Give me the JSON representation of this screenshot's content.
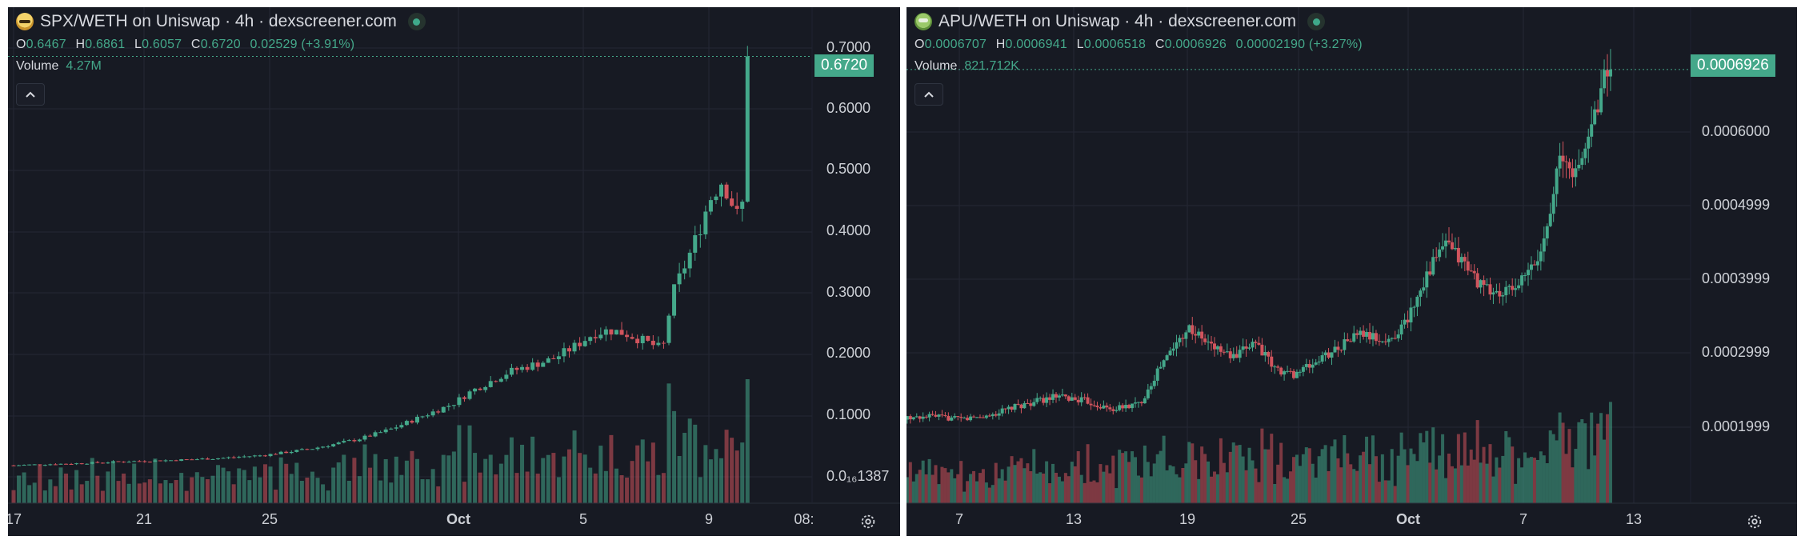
{
  "colors": {
    "up": "#44a88a",
    "down": "#d1545d",
    "background": "#171a23",
    "grid": "#242835"
  },
  "left": {
    "pair": "SPX/WETH",
    "title": "SPX/WETH on Uniswap · 4h · dexscreener.com",
    "logo": "spx-token-logo",
    "ohlc": {
      "o_label": "O",
      "o": "0.6467",
      "h_label": "H",
      "h": "0.6861",
      "l_label": "L",
      "l": "0.6057",
      "c_label": "C",
      "c": "0.6720",
      "change": "0.02529 (+3.91%)"
    },
    "volume": {
      "label": "Volume",
      "value": "4.27M"
    },
    "last_price": "0.6720",
    "y_ticks": [
      "0.7000",
      "0.6000",
      "0.5000",
      "0.4000",
      "0.3000",
      "0.2000",
      "0.1000",
      "0.0₁₆1387"
    ],
    "x_ticks": [
      "17",
      "21",
      "25",
      "Oct",
      "5",
      "9",
      "08:"
    ]
  },
  "right": {
    "pair": "APU/WETH",
    "title": "APU/WETH on Uniswap · 4h · dexscreener.com",
    "logo": "apu-token-logo",
    "ohlc": {
      "o_label": "O",
      "o": "0.0006707",
      "h_label": "H",
      "h": "0.0006941",
      "l_label": "L",
      "l": "0.0006518",
      "c_label": "C",
      "c": "0.0006926",
      "change": "0.00002190 (+3.27%)"
    },
    "volume": {
      "label": "Volume",
      "value": "821.712K"
    },
    "last_price": "0.0006926",
    "y_ticks": [
      "0.0006000",
      "0.0004999",
      "0.0003999",
      "0.0002999",
      "0.0001999"
    ],
    "x_ticks": [
      "7",
      "13",
      "19",
      "25",
      "Oct",
      "7",
      "13"
    ]
  },
  "chart_data": [
    {
      "type": "candlestick",
      "title": "SPX/WETH on Uniswap · 4h · dexscreener.com",
      "ylim": [
        0,
        0.7
      ],
      "x_ticks": [
        "17",
        "21",
        "25",
        "Oct",
        "5",
        "9",
        "08:"
      ],
      "y_ticks": [
        "0.7000",
        "0.6000",
        "0.5000",
        "0.4000",
        "0.3000",
        "0.2000",
        "0.1000",
        "0.0₁₆1387"
      ],
      "trend_close": [
        0.03,
        0.032,
        0.035,
        0.037,
        0.04,
        0.042,
        0.045,
        0.05,
        0.06,
        0.075,
        0.09,
        0.11,
        0.13,
        0.15,
        0.165,
        0.18,
        0.19,
        0.2,
        0.22,
        0.24,
        0.245,
        0.24,
        0.23,
        0.215,
        0.3,
        0.38,
        0.45,
        0.48,
        0.42,
        0.5,
        0.56,
        0.6,
        0.57,
        0.6,
        0.672
      ],
      "trend_x_day": [
        14.5,
        16,
        17.5,
        19,
        20.5,
        22,
        23.5,
        25,
        26.5,
        28,
        29,
        30,
        31,
        31.6,
        32.2,
        32.8,
        33.5,
        34.2,
        34.9,
        35.5,
        36,
        36.5,
        37,
        37.7,
        38,
        38.7,
        39.2,
        39.6,
        40.1,
        40.6,
        41.1,
        41.6,
        42.1,
        42.6,
        43.1
      ],
      "last": {
        "open": 0.6467,
        "high": 0.6861,
        "low": 0.6057,
        "close": 0.672,
        "change": 0.02529,
        "change_pct": 3.91
      },
      "volume_total_label": "4.27M"
    },
    {
      "type": "candlestick",
      "title": "APU/WETH on Uniswap · 4h · dexscreener.com",
      "ylim": [
        7e-05,
        0.0007
      ],
      "x_ticks": [
        "7",
        "13",
        "19",
        "25",
        "Oct",
        "7",
        "13"
      ],
      "y_ticks": [
        "0.0006000",
        "0.0004999",
        "0.0003999",
        "0.0002999",
        "0.0001999"
      ],
      "trend_close": [
        0.00014,
        0.000145,
        0.00015,
        0.000145,
        0.00015,
        0.000165,
        0.00018,
        0.000175,
        0.00016,
        0.00017,
        0.000225,
        0.00029,
        0.000265,
        0.00024,
        0.00027,
        0.000225,
        0.000215,
        0.00023,
        0.00026,
        0.00028,
        0.000265,
        0.0003,
        0.00037,
        0.00042,
        0.00039,
        0.00035,
        0.00034,
        0.00036,
        0.0004,
        0.00055,
        0.00053,
        0.00062,
        0.0006926
      ],
      "trend_x_day": [
        2.5,
        4,
        5.5,
        7,
        8.5,
        10,
        12,
        13.5,
        15,
        16.5,
        17.5,
        19,
        20,
        21.5,
        22.5,
        23.5,
        24.5,
        25.5,
        27,
        28,
        29.5,
        30.5,
        31.5,
        32.5,
        33.5,
        34.5,
        35.5,
        36.5,
        37.5,
        38.5,
        39.5,
        40.3,
        41
      ]
    }
  ]
}
